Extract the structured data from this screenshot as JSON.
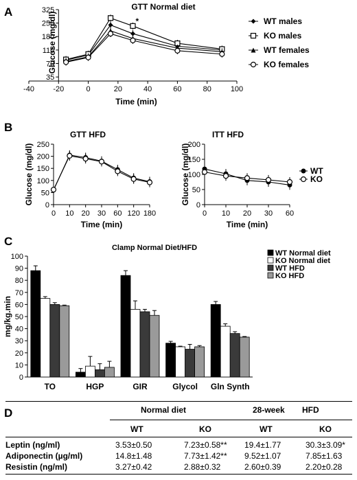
{
  "panels": {
    "A": "A",
    "B": "B",
    "C": "C",
    "D": "D"
  },
  "chart_data": [
    {
      "id": "A",
      "type": "line",
      "title": "GTT Normal diet",
      "xlabel": "Time (min)",
      "ylabel": "Glucose (mg/dl)",
      "xlim": [
        -40,
        100
      ],
      "x_ticks": [
        -40,
        -20,
        0,
        20,
        40,
        60,
        80,
        100
      ],
      "y_tick_labels": [
        "35",
        "70",
        "110",
        "180",
        "250",
        "325"
      ],
      "y_tick_values": [
        35,
        70,
        110,
        180,
        250,
        325
      ],
      "x": [
        -15,
        0,
        15,
        30,
        60,
        90
      ],
      "legend_position": "right",
      "annotations": [
        "*"
      ],
      "series": [
        {
          "name": "WT males",
          "marker": "filled-diamond",
          "values": [
            80,
            95,
            240,
            195,
            130,
            110
          ]
        },
        {
          "name": "KO males",
          "marker": "open-square",
          "values": [
            82,
            98,
            278,
            235,
            145,
            115
          ]
        },
        {
          "name": "WT females",
          "marker": "filled-triangle",
          "values": [
            76,
            90,
            210,
            170,
            120,
            105
          ]
        },
        {
          "name": "KO females",
          "marker": "open-circle",
          "values": [
            74,
            88,
            195,
            160,
            108,
            98
          ]
        }
      ]
    },
    {
      "id": "B1",
      "type": "line",
      "title": "GTT HFD",
      "xlabel": "Time (min)",
      "ylabel": "Glucose (mg/dl)",
      "categories": [
        "0",
        "10",
        "20",
        "30",
        "60",
        "120",
        "180"
      ],
      "ylim": [
        0,
        250
      ],
      "y_ticks": [
        0,
        50,
        100,
        150,
        200,
        250
      ],
      "series": [
        {
          "name": "WT",
          "values": [
            60,
            205,
            195,
            180,
            145,
            110,
            95
          ]
        },
        {
          "name": "KO",
          "values": [
            62,
            202,
            190,
            178,
            138,
            106,
            92
          ]
        }
      ]
    },
    {
      "id": "B2",
      "type": "line",
      "title": "ITT HFD",
      "xlabel": "Time (min)",
      "ylabel": "Glucose (mg/dl)",
      "categories": [
        "0",
        "10",
        "20",
        "30",
        "60"
      ],
      "ylim": [
        0,
        200
      ],
      "y_ticks": [
        0,
        50,
        100,
        150,
        200
      ],
      "legend_position": "right",
      "series": [
        {
          "name": "WT",
          "values": [
            118,
            102,
            80,
            75,
            65
          ]
        },
        {
          "name": "KO",
          "values": [
            108,
            95,
            88,
            82,
            75
          ]
        }
      ]
    },
    {
      "id": "C",
      "type": "bar",
      "title": "Clamp Normal Diet/HFD",
      "ylabel": "mg/kg.min",
      "ylim": [
        0,
        100
      ],
      "y_ticks": [
        0,
        10,
        20,
        30,
        40,
        50,
        60,
        70,
        80,
        90,
        100
      ],
      "categories": [
        "TO",
        "HGP",
        "GIR",
        "Glycol",
        "Gln Synth"
      ],
      "legend_position": "top-right",
      "series": [
        {
          "name": "WT Normal diet",
          "color": "#000000",
          "values": [
            88,
            4,
            84,
            28,
            60
          ],
          "errors": [
            4,
            3,
            4,
            1.5,
            2.5
          ]
        },
        {
          "name": "KO Normal diet",
          "color": "#ffffff",
          "values": [
            65,
            9,
            56,
            25,
            42
          ],
          "errors": [
            1.5,
            8,
            7,
            0.5,
            2
          ]
        },
        {
          "name": "WT HFD",
          "color": "#3a3a3a",
          "values": [
            60,
            6,
            54,
            23,
            36
          ],
          "errors": [
            1.5,
            5,
            2,
            4,
            1.5
          ]
        },
        {
          "name": "KO HFD",
          "color": "#9a9a9a",
          "values": [
            59,
            8,
            51,
            25,
            33
          ],
          "errors": [
            0.5,
            5,
            4,
            1,
            0.5
          ]
        }
      ]
    },
    {
      "id": "D",
      "type": "table",
      "group_headers": [
        "Normal diet",
        "28-week",
        "HFD"
      ],
      "columns": [
        "WT",
        "KO",
        "WT",
        "KO"
      ],
      "rows": [
        {
          "label": "Leptin (ng/ml)",
          "cells": [
            "3.53±0.50",
            "7.23±0.58**",
            "19.4±1.77",
            "30.3±3.09*"
          ]
        },
        {
          "label": "Adiponectin (µg/ml)",
          "cells": [
            "14.8±1.48",
            "7.73±1.42**",
            "9.52±1.07",
            "7.85±1.63"
          ]
        },
        {
          "label": "Resistin (ng/ml)",
          "cells": [
            "3.27±0.42",
            "2.88±0.32",
            "2.60±0.39",
            "2.20±0.28"
          ]
        }
      ]
    }
  ]
}
